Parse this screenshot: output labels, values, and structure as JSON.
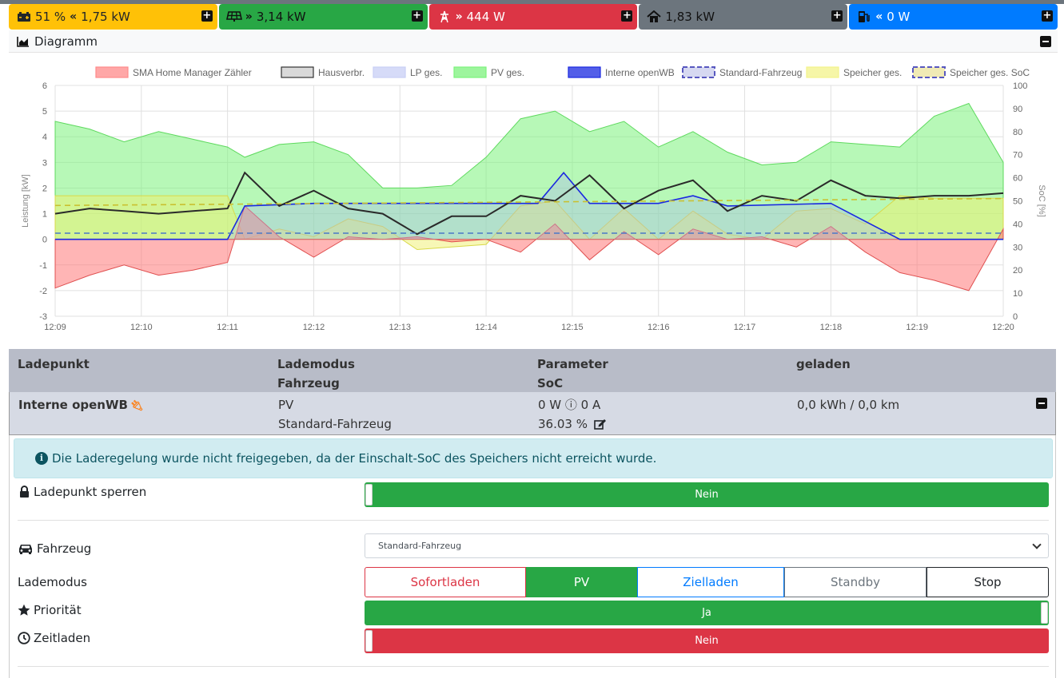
{
  "tiles": {
    "battery": {
      "soc": "51 %",
      "arrow": "«",
      "power": "1,75 kW",
      "color": "#ffc107"
    },
    "pv": {
      "arrow": "»",
      "power": "3,14 kW",
      "color": "#28a745"
    },
    "grid": {
      "arrow": "»",
      "power": "444 W",
      "color": "#dc3545"
    },
    "house": {
      "power": "1,83 kW",
      "color": "#6c757d"
    },
    "chargepoint": {
      "arrow": "«",
      "power": "0 W",
      "color": "#007bff"
    }
  },
  "diagram": {
    "title": "Diagramm"
  },
  "chart_data": {
    "type": "area",
    "legend": [
      {
        "name": "SMA Home Manager Zähler",
        "color": "#ff8a8a"
      },
      {
        "name": "Hausverbr.",
        "color": "#333333"
      },
      {
        "name": "LP ges.",
        "color": "#c8cff5"
      },
      {
        "name": "PV ges.",
        "color": "#7cf27c"
      },
      {
        "name": "Interne openWB",
        "color": "#1a28e0"
      },
      {
        "name": "Standard-Fahrzeug",
        "color": "#8a8fd8"
      },
      {
        "name": "Speicher ges.",
        "color": "#f3f38a"
      },
      {
        "name": "Speicher ges. SoC",
        "color": "#d4c22a"
      }
    ],
    "legend_position": "top",
    "ylabel": "Leistung [kW]",
    "y2label": "SoC [%]",
    "ylim": [
      -3,
      6
    ],
    "y2lim": [
      0,
      100
    ],
    "yticks": [
      "-3",
      "-2",
      "-1",
      "0",
      "1",
      "2",
      "3",
      "4",
      "5",
      "6"
    ],
    "y2ticks": [
      "0",
      "10",
      "20",
      "30",
      "40",
      "50",
      "60",
      "70",
      "80",
      "90",
      "100"
    ],
    "xticks": [
      "12:09",
      "12:10",
      "12:11",
      "12:12",
      "12:13",
      "12:14",
      "12:15",
      "12:16",
      "12:17",
      "12:18",
      "12:19",
      "12:20"
    ],
    "grid": true,
    "series": [
      {
        "name": "PV ges.",
        "x": [
          0,
          0.4,
          0.8,
          1.2,
          1.6,
          2.0,
          2.2,
          2.6,
          3.0,
          3.4,
          3.8,
          4.2,
          4.6,
          5.0,
          5.4,
          5.8,
          6.2,
          6.6,
          7.0,
          7.4,
          7.8,
          8.2,
          8.6,
          9.0,
          9.4,
          9.8,
          10.2,
          10.6,
          11.0
        ],
        "values": [
          4.6,
          4.3,
          3.8,
          4.2,
          3.9,
          3.6,
          3.2,
          3.7,
          3.8,
          3.3,
          2.0,
          2.0,
          2.1,
          3.2,
          4.7,
          5.0,
          4.2,
          4.6,
          3.6,
          4.2,
          3.4,
          2.9,
          3.0,
          3.8,
          3.7,
          3.6,
          4.8,
          5.3,
          3.0
        ]
      },
      {
        "name": "Hausverbr.",
        "x": [
          0,
          0.4,
          0.8,
          1.2,
          1.6,
          2.0,
          2.2,
          2.6,
          3.0,
          3.4,
          3.8,
          4.2,
          4.6,
          5.0,
          5.4,
          5.8,
          6.2,
          6.6,
          7.0,
          7.4,
          7.8,
          8.2,
          8.6,
          9.0,
          9.4,
          9.8,
          10.2,
          10.6,
          11.0
        ],
        "values": [
          1.0,
          1.2,
          1.1,
          1.0,
          1.1,
          1.2,
          2.6,
          1.3,
          1.9,
          1.2,
          1.0,
          0.2,
          0.9,
          0.9,
          1.7,
          1.5,
          2.5,
          1.2,
          1.9,
          2.3,
          1.1,
          1.7,
          1.5,
          2.3,
          1.7,
          1.6,
          1.7,
          1.7,
          1.8
        ]
      },
      {
        "name": "SMA Home Manager Zähler",
        "x": [
          0,
          0.4,
          0.8,
          1.2,
          1.6,
          2.0,
          2.2,
          2.6,
          3.0,
          3.4,
          3.8,
          4.2,
          4.6,
          5.0,
          5.4,
          5.8,
          6.2,
          6.6,
          7.0,
          7.4,
          7.8,
          8.2,
          8.6,
          9.0,
          9.4,
          9.8,
          10.2,
          10.6,
          11.0
        ],
        "values": [
          -1.9,
          -1.4,
          -1.0,
          -1.4,
          -1.2,
          -0.9,
          1.3,
          0.1,
          -0.7,
          0.1,
          0.0,
          0.1,
          -0.1,
          0.0,
          -0.5,
          0.6,
          -0.8,
          0.3,
          -0.6,
          0.4,
          0.0,
          0.1,
          -0.3,
          0.5,
          -0.5,
          -1.3,
          -1.6,
          -2.0,
          0.4
        ]
      },
      {
        "name": "Speicher ges.",
        "x": [
          0,
          0.4,
          0.8,
          1.2,
          1.6,
          2.0,
          2.2,
          2.6,
          3.0,
          3.4,
          3.8,
          4.2,
          4.6,
          5.0,
          5.4,
          5.8,
          6.2,
          6.6,
          7.0,
          7.4,
          7.8,
          8.2,
          8.6,
          9.0,
          9.4,
          9.8,
          10.2,
          10.6,
          11.0
        ],
        "values": [
          1.7,
          1.7,
          1.7,
          1.7,
          1.7,
          1.7,
          0.0,
          0.4,
          0.1,
          0.8,
          0.5,
          -0.4,
          -0.3,
          -0.2,
          1.3,
          1.5,
          0.0,
          1.2,
          0.0,
          1.1,
          0.2,
          0.0,
          1.1,
          1.2,
          0.6,
          1.7,
          1.6,
          1.6,
          1.6
        ]
      },
      {
        "name": "Interne openWB",
        "x": [
          0,
          1.0,
          1.6,
          2.0,
          2.2,
          3.0,
          4.0,
          5.0,
          5.6,
          5.9,
          6.2,
          6.6,
          7.0,
          7.4,
          7.8,
          9.0,
          9.8,
          11.0
        ],
        "values": [
          0.0,
          0.0,
          0.0,
          0.0,
          1.3,
          1.4,
          1.4,
          1.4,
          1.4,
          2.6,
          1.4,
          1.4,
          1.4,
          1.7,
          1.3,
          1.4,
          0.0,
          0.0
        ]
      },
      {
        "name": "Speicher ges. SoC",
        "x": [
          0,
          11.0
        ],
        "values": [
          48,
          51
        ]
      },
      {
        "name": "Standard-Fahrzeug",
        "x": [
          0,
          11.0
        ],
        "values": [
          36,
          36
        ]
      }
    ]
  },
  "table": {
    "headers": {
      "ladepunkt": "Ladepunkt",
      "lademodus": "Lademodus",
      "fahrzeug": "Fahrzeug",
      "parameter": "Parameter",
      "soc": "SoC",
      "geladen": "geladen"
    },
    "row": {
      "name": "Interne openWB",
      "mode": "PV",
      "vehicle": "Standard-Fahrzeug",
      "params": "0 W ⓘ 0 A",
      "soc": "36.03 %",
      "charged": "0,0 kWh / 0,0 km"
    }
  },
  "detail": {
    "alert": "Die Laderegelung wurde nicht freigegeben, da der Einschalt-SoC des Speichers nicht erreicht wurde.",
    "lock_label": "Ladepunkt sperren",
    "lock_value": "Nein",
    "vehicle_label": "Fahrzeug",
    "vehicle_selected": "Standard-Fahrzeug",
    "mode_label": "Lademodus",
    "modes": [
      "Sofortladen",
      "PV",
      "Zielladen",
      "Standby",
      "Stop"
    ],
    "mode_active": "PV",
    "priority_label": "Priorität",
    "priority_value": "Ja",
    "timed_label": "Zeitladen",
    "timed_value": "Nein"
  }
}
